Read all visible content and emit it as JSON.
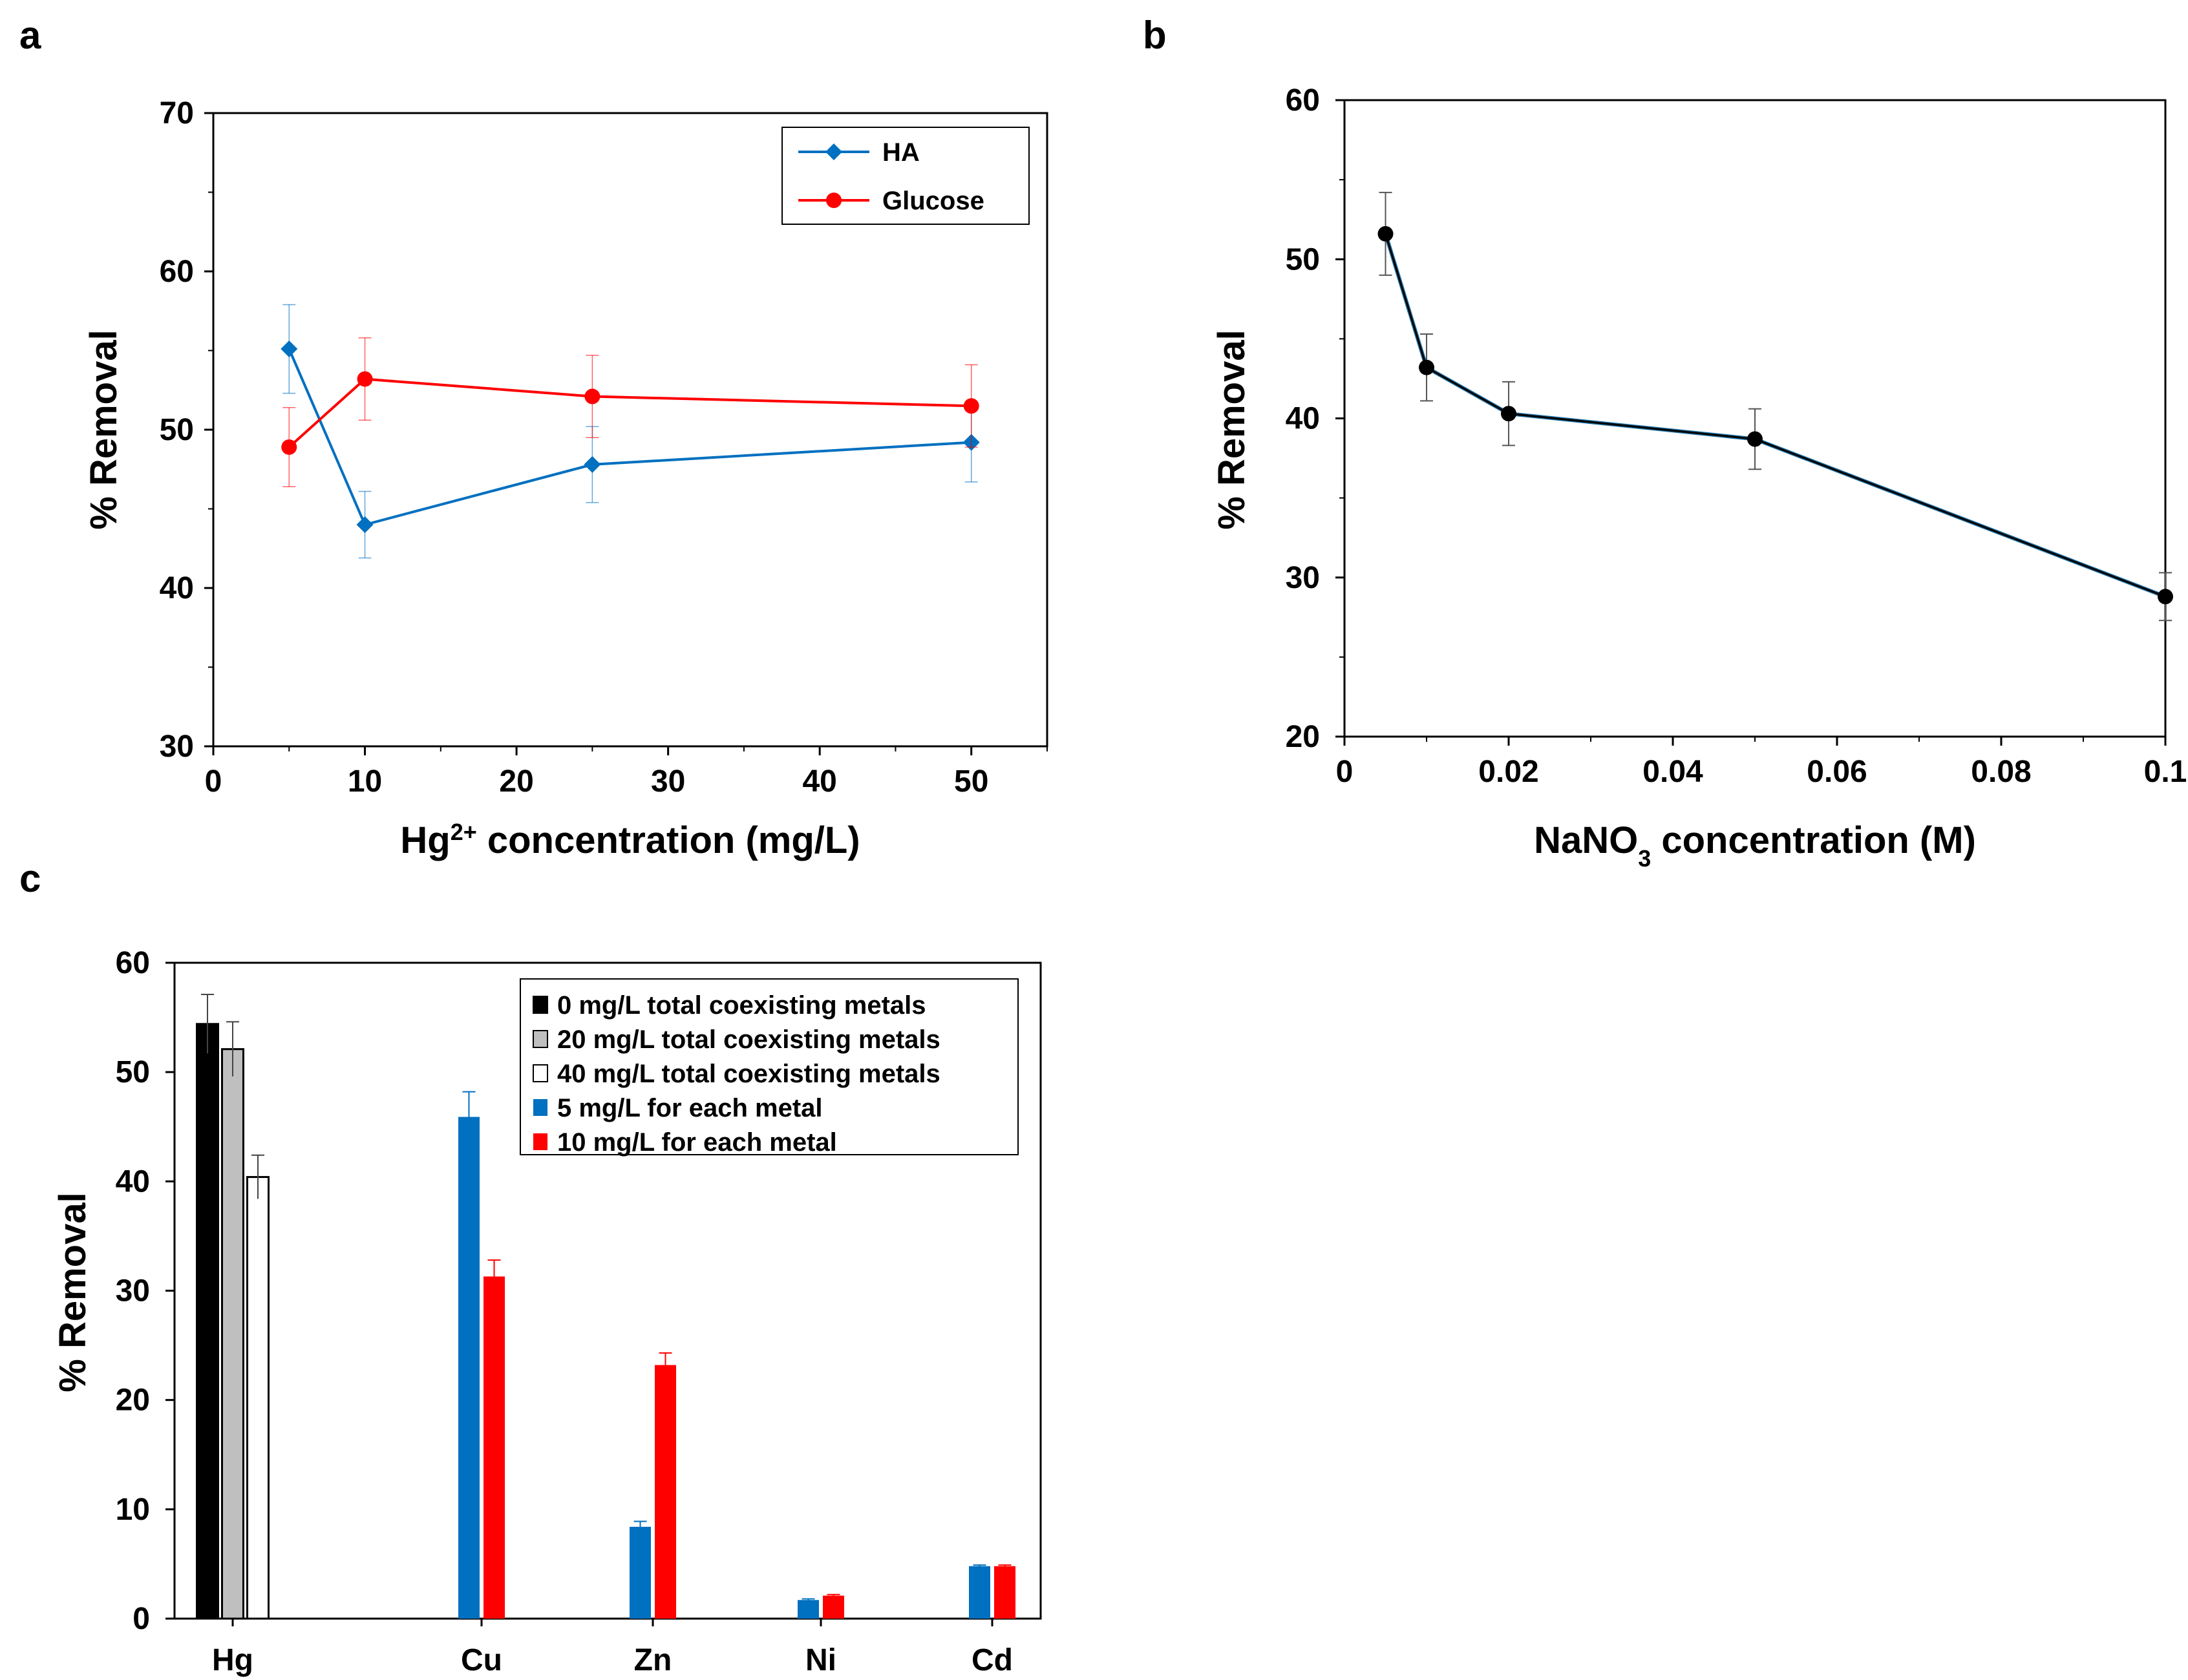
{
  "panel_labels": {
    "a": "a",
    "b": "b",
    "c": "c"
  },
  "colors": {
    "ha": "#0070C0",
    "glucose": "#FF0000",
    "nano3": "#000000",
    "blue": "#0070C0",
    "red": "#FF0000",
    "gray": "#BFBFBF",
    "black": "#000000",
    "white": "#FFFFFF"
  },
  "chart_data": [
    {
      "id": "a",
      "type": "line",
      "title": "",
      "xlabel_main": "Hg",
      "xlabel_sup": "2+",
      "xlabel_rest": " concentration (mg/L)",
      "ylabel": "% Removal",
      "xlim": [
        0,
        55
      ],
      "ylim": [
        30,
        70
      ],
      "xticks": [
        0,
        10,
        20,
        30,
        40,
        50
      ],
      "yticks": [
        30,
        40,
        50,
        60,
        70
      ],
      "legend_position": "top-right",
      "series": [
        {
          "name": "HA",
          "marker": "diamond",
          "x": [
            5,
            10,
            25,
            50
          ],
          "y": [
            55.1,
            44.0,
            47.8,
            49.2
          ],
          "err": [
            2.8,
            2.1,
            2.4,
            2.5
          ]
        },
        {
          "name": "Glucose",
          "marker": "circle",
          "x": [
            5,
            10,
            25,
            50
          ],
          "y": [
            48.9,
            53.2,
            52.1,
            51.5
          ],
          "err": [
            2.5,
            2.6,
            2.6,
            2.6
          ]
        }
      ]
    },
    {
      "id": "b",
      "type": "line",
      "title": "",
      "xlabel_main": "NaNO",
      "xlabel_sub": "3",
      "xlabel_rest": " concentration (M)",
      "ylabel": "% Removal",
      "xlim": [
        0,
        0.1
      ],
      "ylim": [
        20,
        60
      ],
      "xticks": [
        0,
        0.02,
        0.04,
        0.06,
        0.08,
        0.1
      ],
      "xtick_labels": [
        "0",
        "0.02",
        "0.04",
        "0.06",
        "0.08",
        "0.1"
      ],
      "yticks": [
        20,
        30,
        40,
        50,
        60
      ],
      "series": [
        {
          "name": "NaNO3",
          "marker": "circle",
          "x": [
            0.005,
            0.01,
            0.02,
            0.05,
            0.1
          ],
          "y": [
            51.6,
            43.2,
            40.3,
            38.7,
            28.8
          ],
          "err": [
            2.6,
            2.1,
            2.0,
            1.9,
            1.5
          ]
        }
      ]
    },
    {
      "id": "c",
      "type": "bar",
      "title": "",
      "xlabel": "",
      "ylabel": "% Removal",
      "ylim": [
        0,
        60
      ],
      "yticks": [
        0,
        10,
        20,
        30,
        40,
        50,
        60
      ],
      "categories": [
        "Hg",
        "Cu",
        "Zn",
        "Ni",
        "Cd"
      ],
      "legend_position": "top-right",
      "series": [
        {
          "name": "0 mg/L total coexisting metals",
          "color": "#000000",
          "values": [
            54.4,
            null,
            null,
            null,
            null
          ],
          "err": [
            2.7,
            null,
            null,
            null,
            null
          ]
        },
        {
          "name": "20 mg/L total coexisting metals",
          "color": "#BFBFBF",
          "values": [
            52.1,
            null,
            null,
            null,
            null
          ],
          "err": [
            2.5,
            null,
            null,
            null,
            null
          ]
        },
        {
          "name": "40 mg/L total coexisting metals",
          "color": "#FFFFFF",
          "values": [
            40.4,
            null,
            null,
            null,
            null
          ],
          "err": [
            2.0,
            null,
            null,
            null,
            null
          ]
        },
        {
          "name": "5 mg/L for each metal",
          "color": "#0070C0",
          "values": [
            null,
            45.9,
            8.4,
            1.7,
            4.8
          ],
          "err": [
            null,
            2.3,
            0.5,
            0.1,
            0.1
          ]
        },
        {
          "name": "10 mg/L for each metal",
          "color": "#FF0000",
          "values": [
            null,
            31.3,
            23.2,
            2.1,
            4.8
          ],
          "err": [
            null,
            1.5,
            1.1,
            0.1,
            0.1
          ]
        }
      ]
    }
  ]
}
